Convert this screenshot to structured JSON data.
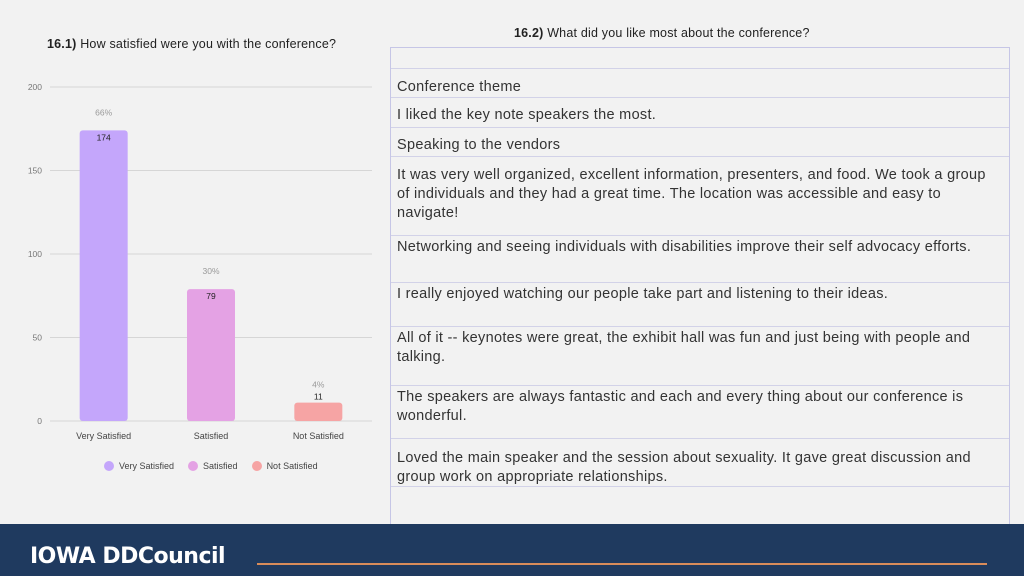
{
  "left_title": {
    "number": "16.1)",
    "text": "How satisfied were you with the conference?"
  },
  "right_title": {
    "number": "16.2)",
    "text": "What did you like most about the conference?"
  },
  "chart_data": {
    "type": "bar",
    "categories": [
      "Very Satisfied",
      "Satisfied",
      "Not Satisfied"
    ],
    "values": [
      174,
      79,
      11
    ],
    "percent_labels": [
      "66%",
      "30%",
      "4%"
    ],
    "colors": [
      "#c4a6fb",
      "#e4a2e4",
      "#f6a4a4"
    ],
    "ylim": [
      0,
      200
    ],
    "yticks": [
      0,
      50,
      100,
      150,
      200
    ],
    "legend_position": "bottom",
    "grid": true
  },
  "legend": [
    {
      "label": "Very Satisfied",
      "color": "#c4a6fb"
    },
    {
      "label": "Satisfied",
      "color": "#e4a2e4"
    },
    {
      "label": "Not Satisfied",
      "color": "#f6a4a4"
    }
  ],
  "responses": [
    "Conference theme",
    "I liked the key note speakers the most.",
    "Speaking to the vendors",
    "It was very well organized, excellent information, presenters, and food. We took a group of individuals and they had a great time. The location was accessible and easy to navigate!",
    "Networking and seeing individuals with disabilities improve their self advocacy efforts.",
    "I really enjoyed watching our people take part and listening to their ideas.",
    "All of it -- keynotes were great, the exhibit hall was fun and just being with people and talking.",
    "The speakers are always fantastic and each and every thing about our conference is wonderful.",
    "Loved the main speaker and the session about sexuality. It gave great discussion and group work on appropriate relationships."
  ],
  "footer": {
    "logo_text": "IOWA DDCouncil"
  }
}
